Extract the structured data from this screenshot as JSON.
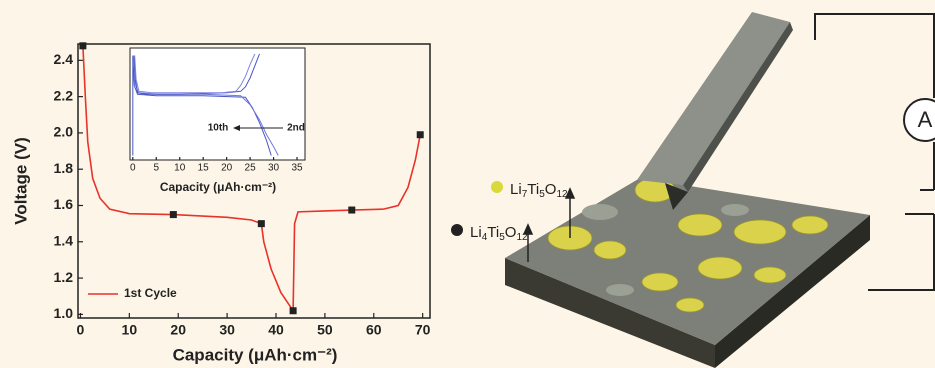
{
  "chart_data": {
    "type": "line",
    "xlabel": "Capacity (μAh·cm⁻²)",
    "ylabel": "Voltage (V)",
    "xlim": [
      -0.5,
      71.5
    ],
    "ylim": [
      0.98,
      2.49
    ],
    "xticks": [
      0,
      10,
      20,
      30,
      40,
      50,
      60,
      70
    ],
    "yticks": [
      {
        "value": 1,
        "label": "1.0"
      },
      1.2,
      1.4,
      1.6,
      1.8,
      {
        "value": 2,
        "label": "2.0"
      },
      2.2,
      2.4
    ],
    "series": [
      {
        "name": "1st Cycle",
        "color": "#e8322a",
        "x": [
          0.5,
          1,
          1.5,
          2.5,
          4,
          6,
          10,
          19,
          30,
          35,
          37,
          37.5,
          39,
          41,
          43,
          43.5,
          43.8,
          44.5,
          50,
          55.5,
          62,
          65,
          67,
          68.5,
          69.5
        ],
        "values": [
          2.48,
          2.2,
          1.95,
          1.75,
          1.64,
          1.58,
          1.555,
          1.55,
          1.535,
          1.52,
          1.5,
          1.4,
          1.25,
          1.12,
          1.04,
          1.02,
          1.5,
          1.565,
          1.57,
          1.575,
          1.58,
          1.6,
          1.7,
          1.85,
          1.99
        ],
        "markers": {
          "x": [
            0.5,
            19,
            37,
            43.5,
            55.5,
            69.5
          ],
          "values": [
            2.48,
            1.55,
            1.5,
            1.02,
            1.575,
            1.99
          ]
        }
      }
    ],
    "inset": {
      "type": "line",
      "xlabel": "Capacity (μAh·cm⁻²)",
      "xlim": [
        -0.6,
        36.7
      ],
      "ylim": [
        1.75,
        2.5
      ],
      "xticks": [
        0,
        5,
        10,
        15,
        20,
        25,
        30,
        35
      ],
      "annotations": [
        "10th",
        "2nd"
      ],
      "series": [
        {
          "color": "#4a55c8",
          "x": [
            0,
            0,
            0.3,
            1,
            5,
            15,
            24,
            25.5,
            27,
            28.5,
            29.5
          ],
          "values": [
            1.78,
            2.45,
            2.25,
            2.19,
            2.18,
            2.18,
            2.17,
            2.1,
            2.0,
            1.88,
            1.78
          ]
        },
        {
          "color": "#6f79d8",
          "x": [
            0.2,
            0.5,
            1.2,
            5,
            15,
            23,
            25,
            27,
            28.5,
            30,
            31
          ],
          "values": [
            2.45,
            2.26,
            2.2,
            2.19,
            2.19,
            2.18,
            2.12,
            2.02,
            1.92,
            1.84,
            1.78
          ]
        },
        {
          "color": "#4a55c8",
          "x": [
            0.3,
            0.5,
            1,
            3,
            10,
            20,
            23,
            24,
            25,
            26,
            27
          ],
          "values": [
            2.45,
            2.3,
            2.2,
            2.19,
            2.19,
            2.2,
            2.21,
            2.24,
            2.3,
            2.38,
            2.46
          ]
        },
        {
          "color": "#7c86df",
          "x": [
            0.4,
            0.7,
            1.3,
            4,
            10,
            19,
            22,
            23,
            24,
            25,
            26
          ],
          "values": [
            2.45,
            2.29,
            2.21,
            2.2,
            2.2,
            2.2,
            2.21,
            2.25,
            2.31,
            2.39,
            2.46
          ]
        }
      ]
    }
  },
  "diagram": {
    "ammeter": "A",
    "labels": [
      {
        "parts": [
          "Li",
          "7",
          "Ti",
          "5",
          "O",
          "12"
        ],
        "color": "#d9d93a"
      },
      {
        "parts": [
          "Li",
          "4",
          "Ti",
          "5",
          "O",
          "12"
        ],
        "color": "#222222"
      }
    ]
  }
}
